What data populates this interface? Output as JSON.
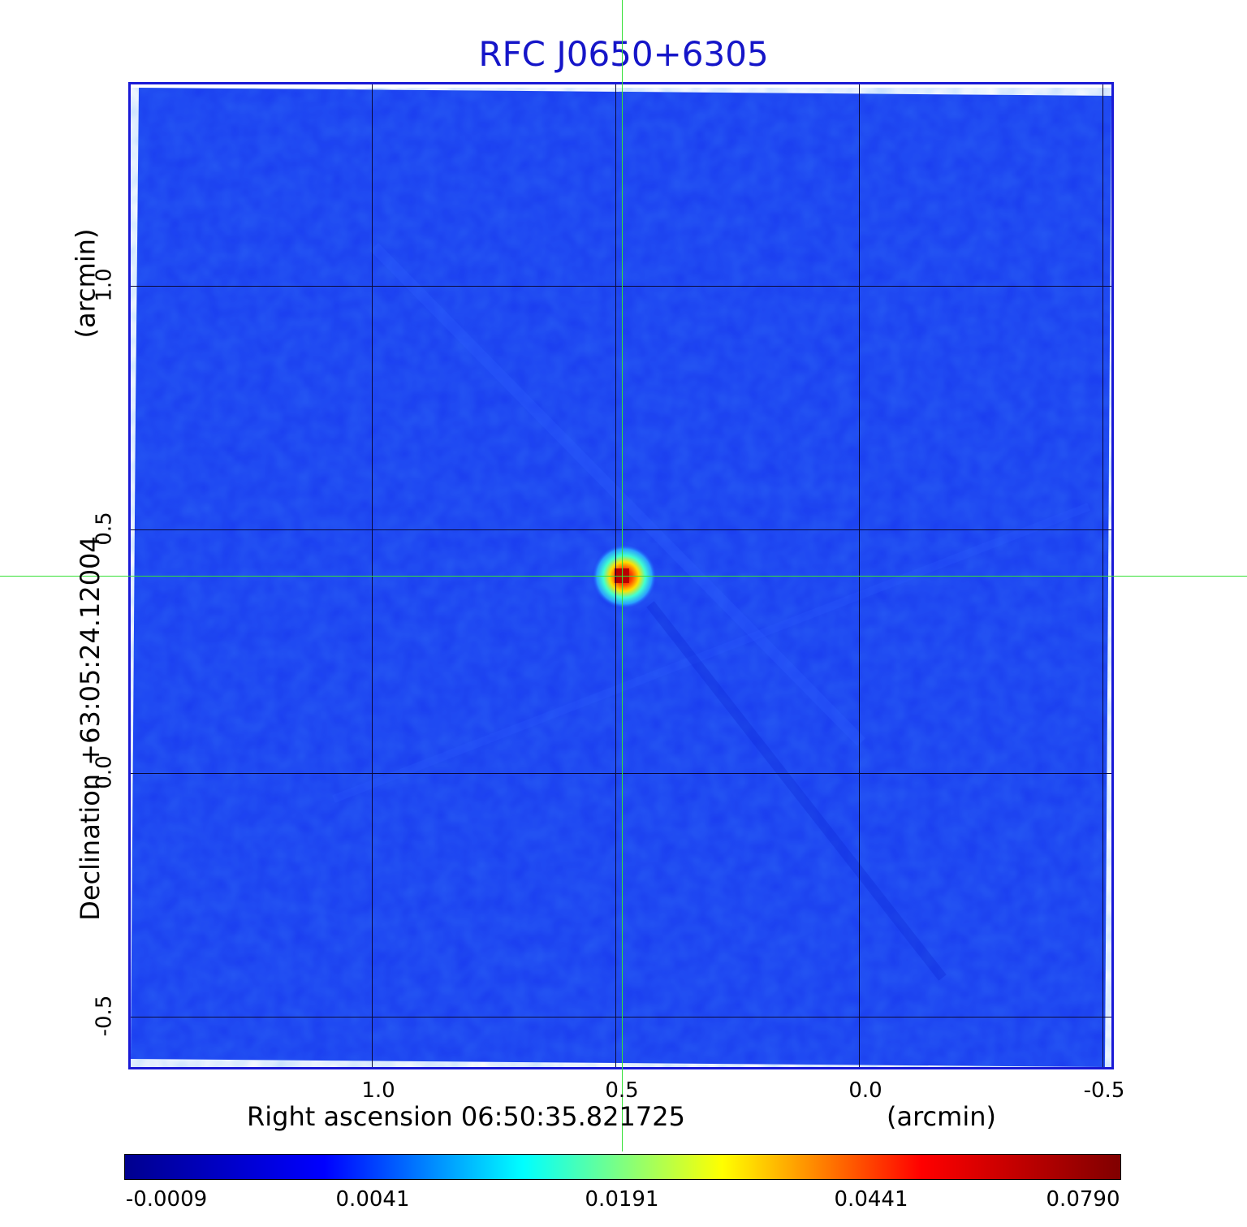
{
  "title": "RFC J0650+6305",
  "x_axis": {
    "label": "Right ascension  06:50:35.821725",
    "unit_label": "(arcmin)",
    "ticks": [
      "1.0",
      "0.5",
      "0.0",
      "-0.5"
    ]
  },
  "y_axis": {
    "label": "Declination  +63:05:24.12004",
    "unit_label": "(arcmin)",
    "ticks": [
      "1.0",
      "0.5",
      "0.0",
      "-0.5"
    ]
  },
  "colorbar": {
    "ticks": [
      "-0.0009",
      "0.0041",
      "0.0191",
      "0.0441",
      "0.0790"
    ],
    "colormap": [
      "#00008f",
      "#0000ff",
      "#00ffff",
      "#ffff00",
      "#ff0000",
      "#800000"
    ]
  },
  "colors": {
    "background_field": "#1a3cf0",
    "frame": "#1a1ad6",
    "title": "#1515c8",
    "crosshair": "#35e035"
  },
  "source": {
    "peak_color": "#c80000"
  }
}
